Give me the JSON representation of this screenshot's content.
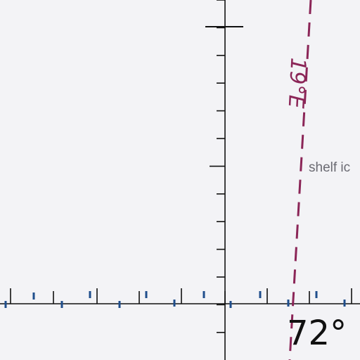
{
  "map": {
    "labels": {
      "latitude": "72°",
      "meridian": "19°E",
      "feature": "shelf ic"
    },
    "colors": {
      "background": "#f3f3f6",
      "graticule": "#111111",
      "meridian_line": "#8b2557",
      "feature_label": "#6a6a72",
      "blue_ticks": "#1f4e8c"
    },
    "line_styles": {
      "meridian": "dashed"
    }
  }
}
